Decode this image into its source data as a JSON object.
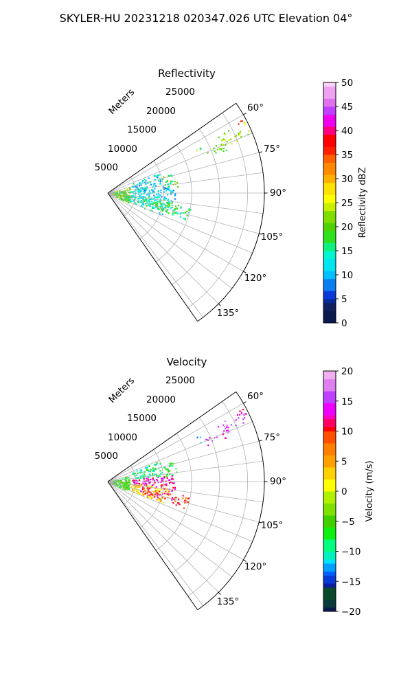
{
  "figure": {
    "suptitle": "SKYLER-HU  20231218  020347.026 UTC Elevation 04°"
  },
  "panels": [
    {
      "title": "Reflectivity",
      "radial_axis_label": "Meters",
      "range_ticks": [
        "5000",
        "10000",
        "15000",
        "20000",
        "25000"
      ],
      "angle_ticks": [
        "60°",
        "75°",
        "90°",
        "105°",
        "120°",
        "135°"
      ],
      "colorbar": {
        "label": "Reflectivity dBZ",
        "ticks": [
          "0",
          "5",
          "10",
          "15",
          "20",
          "25",
          "30",
          "35",
          "40",
          "45",
          "50"
        ]
      }
    },
    {
      "title": "Velocity",
      "radial_axis_label": "Meters",
      "range_ticks": [
        "5000",
        "10000",
        "15000",
        "20000",
        "25000"
      ],
      "angle_ticks": [
        "60°",
        "75°",
        "90°",
        "105°",
        "120°",
        "135°"
      ],
      "colorbar": {
        "label": "Velocity (m/s)",
        "ticks": [
          "−20",
          "−15",
          "−10",
          "−5",
          "0",
          "5",
          "10",
          "15",
          "20"
        ]
      }
    }
  ],
  "chart_data": [
    {
      "type": "heatmap",
      "projection": "polar-sector",
      "title": "Reflectivity",
      "ylabel": "Meters",
      "theta_range_deg": [
        55,
        145
      ],
      "range_lim": [
        0,
        28000
      ],
      "range_ticks": [
        5000,
        10000,
        15000,
        20000,
        25000
      ],
      "theta_ticks_deg": [
        60,
        75,
        90,
        105,
        120,
        135
      ],
      "grid": true,
      "colorbar": {
        "label": "Reflectivity dBZ",
        "min": 0,
        "max": 50,
        "ticks": [
          0,
          5,
          10,
          15,
          20,
          25,
          30,
          35,
          40,
          45,
          50
        ]
      },
      "echo_regions": [
        {
          "azimuth_deg": [
            62,
            68
          ],
          "range_m": [
            22000,
            27500
          ],
          "value": 22
        },
        {
          "azimuth_deg": [
            61,
            63
          ],
          "range_m": [
            26000,
            27500
          ],
          "value": 33
        },
        {
          "azimuth_deg": [
            66,
            70
          ],
          "range_m": [
            19000,
            22500
          ],
          "value": 20
        },
        {
          "azimuth_deg": [
            63,
            67
          ],
          "range_m": [
            17500,
            18500
          ],
          "value": 20
        },
        {
          "azimuth_deg": [
            68,
            84
          ],
          "range_m": [
            4500,
            10000
          ],
          "value": 12
        },
        {
          "azimuth_deg": [
            73,
            85
          ],
          "range_m": [
            10000,
            12500
          ],
          "value": 18
        },
        {
          "azimuth_deg": [
            84,
            98
          ],
          "range_m": [
            4000,
            12000
          ],
          "value": 12
        },
        {
          "azimuth_deg": [
            95,
            112
          ],
          "range_m": [
            3000,
            11000
          ],
          "value": 14
        },
        {
          "azimuth_deg": [
            98,
            108
          ],
          "range_m": [
            6000,
            12500
          ],
          "value": 18
        },
        {
          "azimuth_deg": [
            99,
            109
          ],
          "range_m": [
            12000,
            15000
          ],
          "value": 16
        },
        {
          "azimuth_deg": [
            75,
            115
          ],
          "range_m": [
            0,
            4000
          ],
          "value": 20
        }
      ]
    },
    {
      "type": "heatmap",
      "projection": "polar-sector",
      "title": "Velocity",
      "ylabel": "Meters",
      "theta_range_deg": [
        55,
        145
      ],
      "range_lim": [
        0,
        28000
      ],
      "range_ticks": [
        5000,
        10000,
        15000,
        20000,
        25000
      ],
      "theta_ticks_deg": [
        60,
        75,
        90,
        105,
        120,
        135
      ],
      "grid": true,
      "colorbar": {
        "label": "Velocity (m/s)",
        "min": -20,
        "max": 20,
        "ticks": [
          -20,
          -15,
          -10,
          -5,
          0,
          5,
          10,
          15,
          20
        ]
      },
      "echo_regions": [
        {
          "azimuth_deg": [
            62,
            68
          ],
          "range_m": [
            22000,
            27500
          ],
          "value": 15
        },
        {
          "azimuth_deg": [
            61,
            63
          ],
          "range_m": [
            26000,
            27500
          ],
          "value": 12
        },
        {
          "azimuth_deg": [
            66,
            70
          ],
          "range_m": [
            19000,
            22500
          ],
          "value": 15
        },
        {
          "azimuth_deg": [
            63,
            67
          ],
          "range_m": [
            17500,
            18500
          ],
          "value": -12
        },
        {
          "azimuth_deg": [
            68,
            84
          ],
          "range_m": [
            4500,
            10000
          ],
          "value": -9
        },
        {
          "azimuth_deg": [
            73,
            85
          ],
          "range_m": [
            10000,
            12500
          ],
          "value": -7
        },
        {
          "azimuth_deg": [
            84,
            98
          ],
          "range_m": [
            4000,
            12000
          ],
          "value": 13
        },
        {
          "azimuth_deg": [
            95,
            112
          ],
          "range_m": [
            3000,
            11000
          ],
          "value": 3
        },
        {
          "azimuth_deg": [
            98,
            108
          ],
          "range_m": [
            6000,
            12500
          ],
          "value": 11
        },
        {
          "azimuth_deg": [
            99,
            109
          ],
          "range_m": [
            12000,
            15000
          ],
          "value": 9
        },
        {
          "azimuth_deg": [
            75,
            115
          ],
          "range_m": [
            0,
            4000
          ],
          "value": -6
        }
      ]
    }
  ]
}
